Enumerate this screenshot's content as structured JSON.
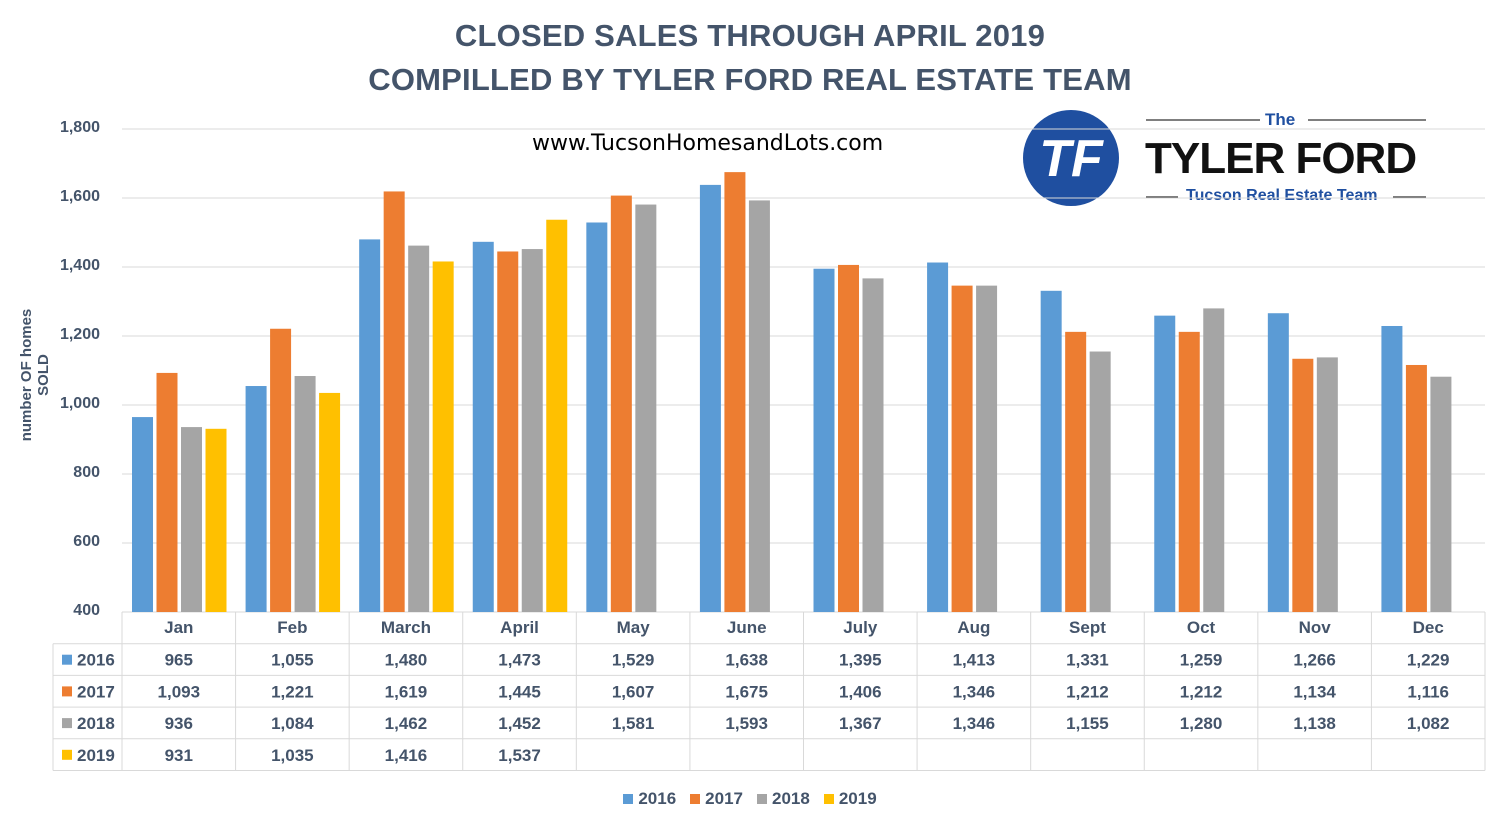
{
  "title_line1": "CLOSED SALES THROUGH APRIL 2019",
  "title_line2": "COMPILLED BY TYLER FORD REAL ESTATE TEAM",
  "website": "www.TucsonHomesandLots.com",
  "logo": {
    "initials": "TF",
    "the": "The",
    "name": "TYLER FORD",
    "subtitle": "Tucson Real Estate Team"
  },
  "colors": {
    "2016": "#5b9bd5",
    "2017": "#ed7d31",
    "2018": "#a5a5a5",
    "2019": "#ffc000",
    "text": "#44546a",
    "logo_blue": "#1f4fa0"
  },
  "chart_data": {
    "type": "bar",
    "ylabel": "number OF homes SOLD",
    "xlabel": "",
    "ylim": [
      400,
      1800
    ],
    "yticks": [
      "400",
      "600",
      "800",
      "1,000",
      "1,200",
      "1,400",
      "1,600",
      "1,800"
    ],
    "grid": true,
    "legend_position": "bottom",
    "categories": [
      "Jan",
      "Feb",
      "March",
      "April",
      "May",
      "June",
      "July",
      "Aug",
      "Sept",
      "Oct",
      "Nov",
      "Dec"
    ],
    "series": [
      {
        "name": "2016",
        "values": [
          965,
          1055,
          1480,
          1473,
          1529,
          1638,
          1395,
          1413,
          1331,
          1259,
          1266,
          1229
        ],
        "labels": [
          "965",
          "1,055",
          "1,480",
          "1,473",
          "1,529",
          "1,638",
          "1,395",
          "1,413",
          "1,331",
          "1,259",
          "1,266",
          "1,229"
        ]
      },
      {
        "name": "2017",
        "values": [
          1093,
          1221,
          1619,
          1445,
          1607,
          1675,
          1406,
          1346,
          1212,
          1212,
          1134,
          1116
        ],
        "labels": [
          "1,093",
          "1,221",
          "1,619",
          "1,445",
          "1,607",
          "1,675",
          "1,406",
          "1,346",
          "1,212",
          "1,212",
          "1,134",
          "1,116"
        ]
      },
      {
        "name": "2018",
        "values": [
          936,
          1084,
          1462,
          1452,
          1581,
          1593,
          1367,
          1346,
          1155,
          1280,
          1138,
          1082
        ],
        "labels": [
          "936",
          "1,084",
          "1,462",
          "1,452",
          "1,581",
          "1,593",
          "1,367",
          "1,346",
          "1,155",
          "1,280",
          "1,138",
          "1,082"
        ]
      },
      {
        "name": "2019",
        "values": [
          931,
          1035,
          1416,
          1537,
          null,
          null,
          null,
          null,
          null,
          null,
          null,
          null
        ],
        "labels": [
          "931",
          "1,035",
          "1,416",
          "1,537",
          "",
          "",
          "",
          "",
          "",
          "",
          "",
          ""
        ]
      }
    ]
  }
}
